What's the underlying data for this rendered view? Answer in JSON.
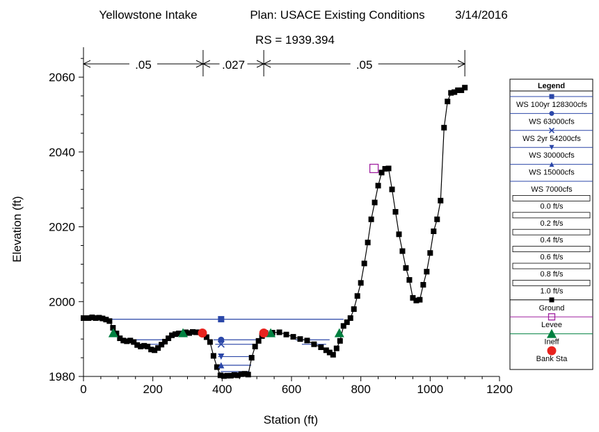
{
  "chart_data": {
    "type": "line",
    "header": {
      "project": "Yellowstone Intake",
      "plan": "Plan: USACE Existing Conditions",
      "date": "3/14/2016"
    },
    "title": "RS = 1939.394",
    "xlabel": "Station (ft)",
    "ylabel": "Elevation (ft)",
    "xlim": [
      0,
      1200
    ],
    "ylim": [
      1980,
      2068
    ],
    "xticks": [
      0,
      200,
      400,
      600,
      800,
      1000,
      1200
    ],
    "yticks": [
      1980,
      2000,
      2020,
      2040,
      2060
    ],
    "grid": false,
    "legend_position": "right",
    "mannings_n": [
      {
        "label": ".05",
        "x_start": 0,
        "x_end": 345
      },
      {
        "label": ".027",
        "x_start": 345,
        "x_end": 520
      },
      {
        "label": ".05",
        "x_start": 520,
        "x_end": 1100
      }
    ],
    "ground": {
      "x": [
        0,
        15,
        25,
        35,
        45,
        55,
        65,
        75,
        85,
        95,
        105,
        115,
        125,
        135,
        145,
        155,
        165,
        175,
        185,
        195,
        205,
        215,
        225,
        235,
        245,
        255,
        265,
        275,
        285,
        295,
        305,
        315,
        325,
        335,
        345,
        355,
        365,
        375,
        385,
        395,
        405,
        415,
        425,
        435,
        445,
        455,
        465,
        475,
        485,
        495,
        505,
        515,
        525,
        545,
        565,
        585,
        605,
        625,
        645,
        665,
        685,
        700,
        710,
        720,
        730,
        740,
        750,
        760,
        770,
        780,
        790,
        800,
        810,
        820,
        830,
        840,
        850,
        860,
        870,
        880,
        890,
        900,
        910,
        920,
        930,
        940,
        950,
        960,
        970,
        980,
        990,
        1000,
        1010,
        1020,
        1030,
        1040,
        1050,
        1060,
        1070,
        1080,
        1090,
        1100
      ],
      "y": [
        1995.6,
        1995.6,
        1995.8,
        1995.6,
        1995.7,
        1995.5,
        1995.2,
        1994.8,
        1993.0,
        1991.5,
        1990.2,
        1989.6,
        1989.4,
        1989.6,
        1989.2,
        1988.4,
        1988.0,
        1988.2,
        1988.0,
        1987.2,
        1987.0,
        1987.6,
        1988.5,
        1989.3,
        1990.2,
        1991.0,
        1991.3,
        1991.5,
        1991.4,
        1991.8,
        1991.6,
        1991.9,
        1991.8,
        1991.8,
        1991.6,
        1990.5,
        1989.2,
        1985.5,
        1982.5,
        1980.3,
        1980.1,
        1980.2,
        1980.2,
        1980.4,
        1980.3,
        1980.6,
        1980.7,
        1980.5,
        1985.0,
        1988.0,
        1989.5,
        1990.8,
        1991.6,
        1991.7,
        1991.8,
        1991.2,
        1990.6,
        1990.0,
        1989.6,
        1988.6,
        1987.8,
        1987.0,
        1986.4,
        1985.8,
        1987.5,
        1989.5,
        1993.5,
        1994.5,
        1995.6,
        1998.0,
        2001.5,
        2005.0,
        2010.2,
        2015.8,
        2022.0,
        2026.5,
        2031.0,
        2034.5,
        2035.5,
        2035.6,
        2030.0,
        2024.0,
        2018.0,
        2013.5,
        2009.0,
        2005.8,
        2001.0,
        2000.3,
        2000.5,
        2004.5,
        2008.0,
        2013.0,
        2018.8,
        2022.0,
        2027.0,
        2046.5,
        2053.5,
        2055.8,
        2056.0,
        2056.5,
        2056.5,
        2057.2
      ]
    },
    "levee": {
      "x": 838,
      "y": 2035.6
    },
    "bank_stations": [
      {
        "x": 343,
        "y": 1991.6
      },
      {
        "x": 520,
        "y": 1991.6
      }
    ],
    "ineffective_flow": [
      {
        "x": 86,
        "y": 1991.6
      },
      {
        "x": 287,
        "y": 1991.6
      },
      {
        "x": 540,
        "y": 1991.6
      },
      {
        "x": 738,
        "y": 1991.6
      }
    ],
    "series": [
      {
        "name": "WS 100yr 128300cfs",
        "color": "#2b47a8",
        "marker": "square",
        "segments": [
          {
            "x0": 0,
            "x1": 750,
            "y": 1995.3
          }
        ],
        "marker_x": 397
      },
      {
        "name": "WS 63000cfs",
        "color": "#2b47a8",
        "marker": "circle",
        "segments": [
          {
            "x0": 130,
            "x1": 250,
            "y": 1989.8
          },
          {
            "x0": 375,
            "x1": 500,
            "y": 1989.8
          },
          {
            "x0": 612,
            "x1": 710,
            "y": 1989.8
          }
        ],
        "marker_x": 397
      },
      {
        "name": "WS 2yr 54200cfs",
        "color": "#2b47a8",
        "marker": "x",
        "segments": [
          {
            "x0": 145,
            "x1": 235,
            "y": 1988.6
          },
          {
            "x0": 380,
            "x1": 495,
            "y": 1988.6
          },
          {
            "x0": 630,
            "x1": 700,
            "y": 1988.6
          }
        ],
        "marker_x": 397
      },
      {
        "name": "WS 30000cfs",
        "color": "#2b47a8",
        "marker": "triangle-down",
        "segments": [
          {
            "x0": 388,
            "x1": 488,
            "y": 1985.3
          }
        ],
        "marker_x": 397
      },
      {
        "name": "WS 15000cfs",
        "color": "#2b47a8",
        "marker": "triangle-up",
        "segments": [
          {
            "x0": 392,
            "x1": 484,
            "y": 1983.0
          }
        ],
        "marker_x": 397
      },
      {
        "name": "WS 7000cfs",
        "color": "#2b47a8",
        "marker": "none",
        "segments": [
          {
            "x0": 396,
            "x1": 478,
            "y": 1981.3
          }
        ],
        "marker_x": 397
      }
    ],
    "velocity_legend": [
      "0.0 ft/s",
      "0.2 ft/s",
      "0.4 ft/s",
      "0.6 ft/s",
      "0.8 ft/s",
      "1.0 ft/s"
    ],
    "legend": {
      "title": "Legend",
      "entries": [
        {
          "label": "WS 100yr 128300cfs",
          "kind": "line",
          "color": "#2b47a8",
          "marker": "square"
        },
        {
          "label": "WS 63000cfs",
          "kind": "line",
          "color": "#2b47a8",
          "marker": "circle"
        },
        {
          "label": "WS 2yr 54200cfs",
          "kind": "line",
          "color": "#2b47a8",
          "marker": "x"
        },
        {
          "label": "WS 30000cfs",
          "kind": "line",
          "color": "#2b47a8",
          "marker": "triangle-down"
        },
        {
          "label": "WS 15000cfs",
          "kind": "line",
          "color": "#2b47a8",
          "marker": "triangle-up"
        },
        {
          "label": "WS 7000cfs",
          "kind": "line",
          "color": "#2b47a8",
          "marker": "none"
        },
        {
          "label": "0.0 ft/s",
          "kind": "box"
        },
        {
          "label": "0.2 ft/s",
          "kind": "box"
        },
        {
          "label": "0.4 ft/s",
          "kind": "box"
        },
        {
          "label": "0.6 ft/s",
          "kind": "box"
        },
        {
          "label": "0.8 ft/s",
          "kind": "box"
        },
        {
          "label": "1.0 ft/s",
          "kind": "box"
        },
        {
          "label": "Ground",
          "kind": "line",
          "color": "#000000",
          "marker": "square"
        },
        {
          "label": "Levee",
          "kind": "line",
          "color": "#a020a0",
          "marker": "open-square"
        },
        {
          "label": "Ineff",
          "kind": "line",
          "color": "#008040",
          "marker": "triangle-up-green"
        },
        {
          "label": "Bank Sta",
          "kind": "marker",
          "color": "#e8231e",
          "marker": "circle-red"
        }
      ]
    },
    "colors": {
      "water_surface": "#2b47a8",
      "ground": "#000000",
      "levee": "#a020a0",
      "ineffective": "#008040",
      "bank_station": "#e8231e"
    }
  }
}
